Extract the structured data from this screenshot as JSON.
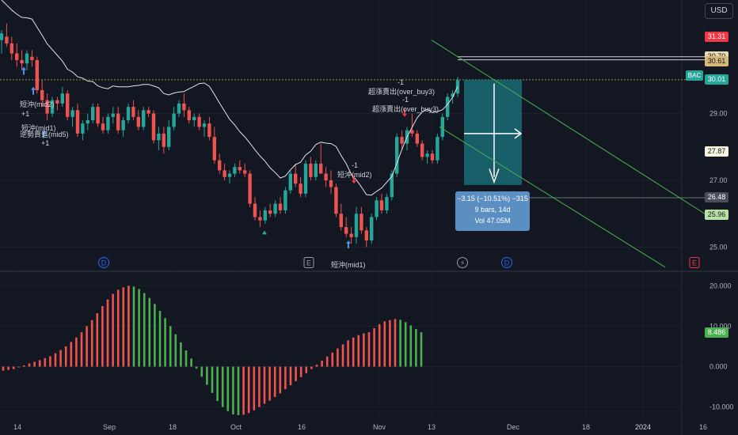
{
  "currency_button": "USD",
  "symbol": "BAC",
  "chart_data": [
    {
      "type": "candlestick",
      "panel": "price",
      "x_ticks": [
        "14",
        "Sep",
        "18",
        "Oct",
        "16",
        "Nov",
        "13",
        "Dec",
        "18",
        "2024",
        "16"
      ],
      "y_ticks": [
        25.0,
        27.0,
        29.0
      ],
      "ylim": [
        24.3,
        32.4
      ],
      "candles_ohlc": [
        [
          31.2,
          31.5,
          30.8,
          31.4
        ],
        [
          31.3,
          31.7,
          31.0,
          31.1
        ],
        [
          31.1,
          31.3,
          30.6,
          30.8
        ],
        [
          30.8,
          31.1,
          30.4,
          30.6
        ],
        [
          30.6,
          30.9,
          30.3,
          30.5
        ],
        [
          30.5,
          30.9,
          30.3,
          30.8
        ],
        [
          30.7,
          30.9,
          30.4,
          30.6
        ],
        [
          30.6,
          30.7,
          29.6,
          29.7
        ],
        [
          29.7,
          30.0,
          29.2,
          29.4
        ],
        [
          29.4,
          29.6,
          28.8,
          29.0
        ],
        [
          29.0,
          29.5,
          28.9,
          29.4
        ],
        [
          29.4,
          29.5,
          29.1,
          29.3
        ],
        [
          29.3,
          29.8,
          29.2,
          29.6
        ],
        [
          29.6,
          29.7,
          28.8,
          28.9
        ],
        [
          28.9,
          29.2,
          28.6,
          29.1
        ],
        [
          29.1,
          29.3,
          28.3,
          28.4
        ],
        [
          28.4,
          28.8,
          28.2,
          28.7
        ],
        [
          28.7,
          29.0,
          28.5,
          28.8
        ],
        [
          28.8,
          29.3,
          28.7,
          29.2
        ],
        [
          29.2,
          29.3,
          28.6,
          28.7
        ],
        [
          28.7,
          28.9,
          28.4,
          28.5
        ],
        [
          28.5,
          29.0,
          28.4,
          28.9
        ],
        [
          28.9,
          29.2,
          28.7,
          29.0
        ],
        [
          29.0,
          29.2,
          28.4,
          28.5
        ],
        [
          28.5,
          28.9,
          28.3,
          28.8
        ],
        [
          28.8,
          29.3,
          28.7,
          29.2
        ],
        [
          29.2,
          29.4,
          28.8,
          28.9
        ],
        [
          28.9,
          29.1,
          28.5,
          28.6
        ],
        [
          28.6,
          29.2,
          28.5,
          29.1
        ],
        [
          29.1,
          29.2,
          28.9,
          29.0
        ],
        [
          29.0,
          29.1,
          28.1,
          28.2
        ],
        [
          28.2,
          28.6,
          27.9,
          28.4
        ],
        [
          28.4,
          28.6,
          27.8,
          28.0
        ],
        [
          28.0,
          28.8,
          27.9,
          28.6
        ],
        [
          28.6,
          29.2,
          28.5,
          29.0
        ],
        [
          29.0,
          29.4,
          28.9,
          29.3
        ],
        [
          29.3,
          29.6,
          28.9,
          29.1
        ],
        [
          29.1,
          29.2,
          28.7,
          28.8
        ],
        [
          28.8,
          29.0,
          28.6,
          28.9
        ],
        [
          28.9,
          29.0,
          28.5,
          28.6
        ],
        [
          28.6,
          28.8,
          28.3,
          28.7
        ],
        [
          28.7,
          28.9,
          28.2,
          28.3
        ],
        [
          28.3,
          28.6,
          27.5,
          27.6
        ],
        [
          27.6,
          27.8,
          27.2,
          27.3
        ],
        [
          27.3,
          27.5,
          27.0,
          27.1
        ],
        [
          27.1,
          27.3,
          26.9,
          27.2
        ],
        [
          27.2,
          27.5,
          27.1,
          27.4
        ],
        [
          27.4,
          27.6,
          27.2,
          27.3
        ],
        [
          27.3,
          27.5,
          27.1,
          27.2
        ],
        [
          27.2,
          27.3,
          26.2,
          26.3
        ],
        [
          26.3,
          26.5,
          25.8,
          25.9
        ],
        [
          25.9,
          26.1,
          25.6,
          25.8
        ],
        [
          25.8,
          26.2,
          25.7,
          26.1
        ],
        [
          26.1,
          26.3,
          25.9,
          26.0
        ],
        [
          26.0,
          26.4,
          25.9,
          26.3
        ],
        [
          26.3,
          26.5,
          26.0,
          26.1
        ],
        [
          26.1,
          26.8,
          26.0,
          26.7
        ],
        [
          26.7,
          27.3,
          26.6,
          27.2
        ],
        [
          27.2,
          27.5,
          26.8,
          26.9
        ],
        [
          26.9,
          27.1,
          26.5,
          26.6
        ],
        [
          26.6,
          27.6,
          26.5,
          27.5
        ],
        [
          27.5,
          27.7,
          27.0,
          27.1
        ],
        [
          27.1,
          27.6,
          27.0,
          27.5
        ],
        [
          27.5,
          28.1,
          27.3,
          27.2
        ],
        [
          27.2,
          27.4,
          26.8,
          27.0
        ],
        [
          27.0,
          27.3,
          26.6,
          26.8
        ],
        [
          26.8,
          26.9,
          25.9,
          26.0
        ],
        [
          26.0,
          26.3,
          25.5,
          25.6
        ],
        [
          25.6,
          25.9,
          25.3,
          25.4
        ],
        [
          25.4,
          25.6,
          25.1,
          25.3
        ],
        [
          25.3,
          26.2,
          25.1,
          26.0
        ],
        [
          26.0,
          26.2,
          25.4,
          25.5
        ],
        [
          25.5,
          25.6,
          25.0,
          25.2
        ],
        [
          25.2,
          26.0,
          25.1,
          25.9
        ],
        [
          25.9,
          26.5,
          25.8,
          26.4
        ],
        [
          26.4,
          26.6,
          26.0,
          26.1
        ],
        [
          26.1,
          26.6,
          26.0,
          26.5
        ],
        [
          26.5,
          27.3,
          26.4,
          27.2
        ],
        [
          27.2,
          28.4,
          27.1,
          28.3
        ],
        [
          28.3,
          28.5,
          27.9,
          28.1
        ],
        [
          28.1,
          28.6,
          27.9,
          28.5
        ],
        [
          28.5,
          29.0,
          28.3,
          28.4
        ],
        [
          28.4,
          28.5,
          28.0,
          28.1
        ],
        [
          28.1,
          28.2,
          27.6,
          27.7
        ],
        [
          27.7,
          27.9,
          27.5,
          27.8
        ],
        [
          27.8,
          27.9,
          27.5,
          27.6
        ],
        [
          27.6,
          28.4,
          27.5,
          28.3
        ],
        [
          28.3,
          29.0,
          28.2,
          28.9
        ],
        [
          28.9,
          29.6,
          28.8,
          29.5
        ],
        [
          29.5,
          29.7,
          29.3,
          29.6
        ],
        [
          29.6,
          30.1,
          29.5,
          30.0
        ]
      ],
      "moving_average_line": true,
      "current_price": 30.01,
      "price_labels": [
        "31.31",
        "30.70",
        "30.61",
        "30.01",
        "27.87",
        "26.48",
        "25.96"
      ],
      "labels_on_chart": [
        {
          "text": "短沖(mid2)"
        },
        {
          "text": "+1"
        },
        {
          "text": "短沖(mid1)"
        },
        {
          "text": "逆勢買進(mid5)"
        },
        {
          "text": "+1"
        },
        {
          "text": "-1"
        },
        {
          "text": "短沖(mid2)"
        },
        {
          "text": "短沖(mid1)"
        },
        {
          "text": "-1"
        },
        {
          "text": "超漲賣出(over_buy3)"
        },
        {
          "text": "-1"
        },
        {
          "text": "超漲賣出(over_buy3)"
        }
      ],
      "event_markers": [
        "D",
        "E",
        "D",
        "D",
        "E"
      ],
      "measure_box": {
        "line1": "−3.15 (−10.51%) −315",
        "line2": "9 bars, 14d",
        "line3": "Vol 47.05M"
      }
    },
    {
      "type": "bar",
      "panel": "oscillator",
      "y_ticks": [
        "20.000",
        "10.000",
        "0.000",
        "-10.000"
      ],
      "ylim": [
        -13,
        23
      ],
      "last_value": "8.486",
      "values": [
        -1.0,
        -0.8,
        -0.6,
        -0.2,
        0.3,
        0.8,
        1.2,
        1.6,
        2.1,
        2.6,
        3.3,
        4.1,
        5.0,
        6.1,
        7.2,
        8.5,
        10.0,
        11.5,
        13.2,
        15.0,
        16.6,
        18.0,
        19.0,
        19.6,
        20.0,
        19.8,
        19.2,
        18.2,
        17.0,
        15.5,
        13.8,
        12.0,
        10.0,
        8.0,
        6.0,
        4.0,
        2.0,
        -0.5,
        -2.5,
        -4.5,
        -6.5,
        -8.5,
        -10.0,
        -11.0,
        -11.8,
        -12.0,
        -11.9,
        -11.5,
        -10.8,
        -10.0,
        -9.2,
        -8.4,
        -7.5,
        -6.6,
        -5.6,
        -4.6,
        -3.6,
        -2.6,
        -1.6,
        -0.6,
        0.5,
        1.5,
        2.5,
        3.5,
        4.5,
        5.5,
        6.5,
        7.2,
        7.8,
        8.2,
        8.5,
        9.5,
        10.5,
        11.2,
        11.5,
        11.8,
        11.6,
        11.0,
        10.2,
        9.3,
        8.486
      ]
    }
  ]
}
